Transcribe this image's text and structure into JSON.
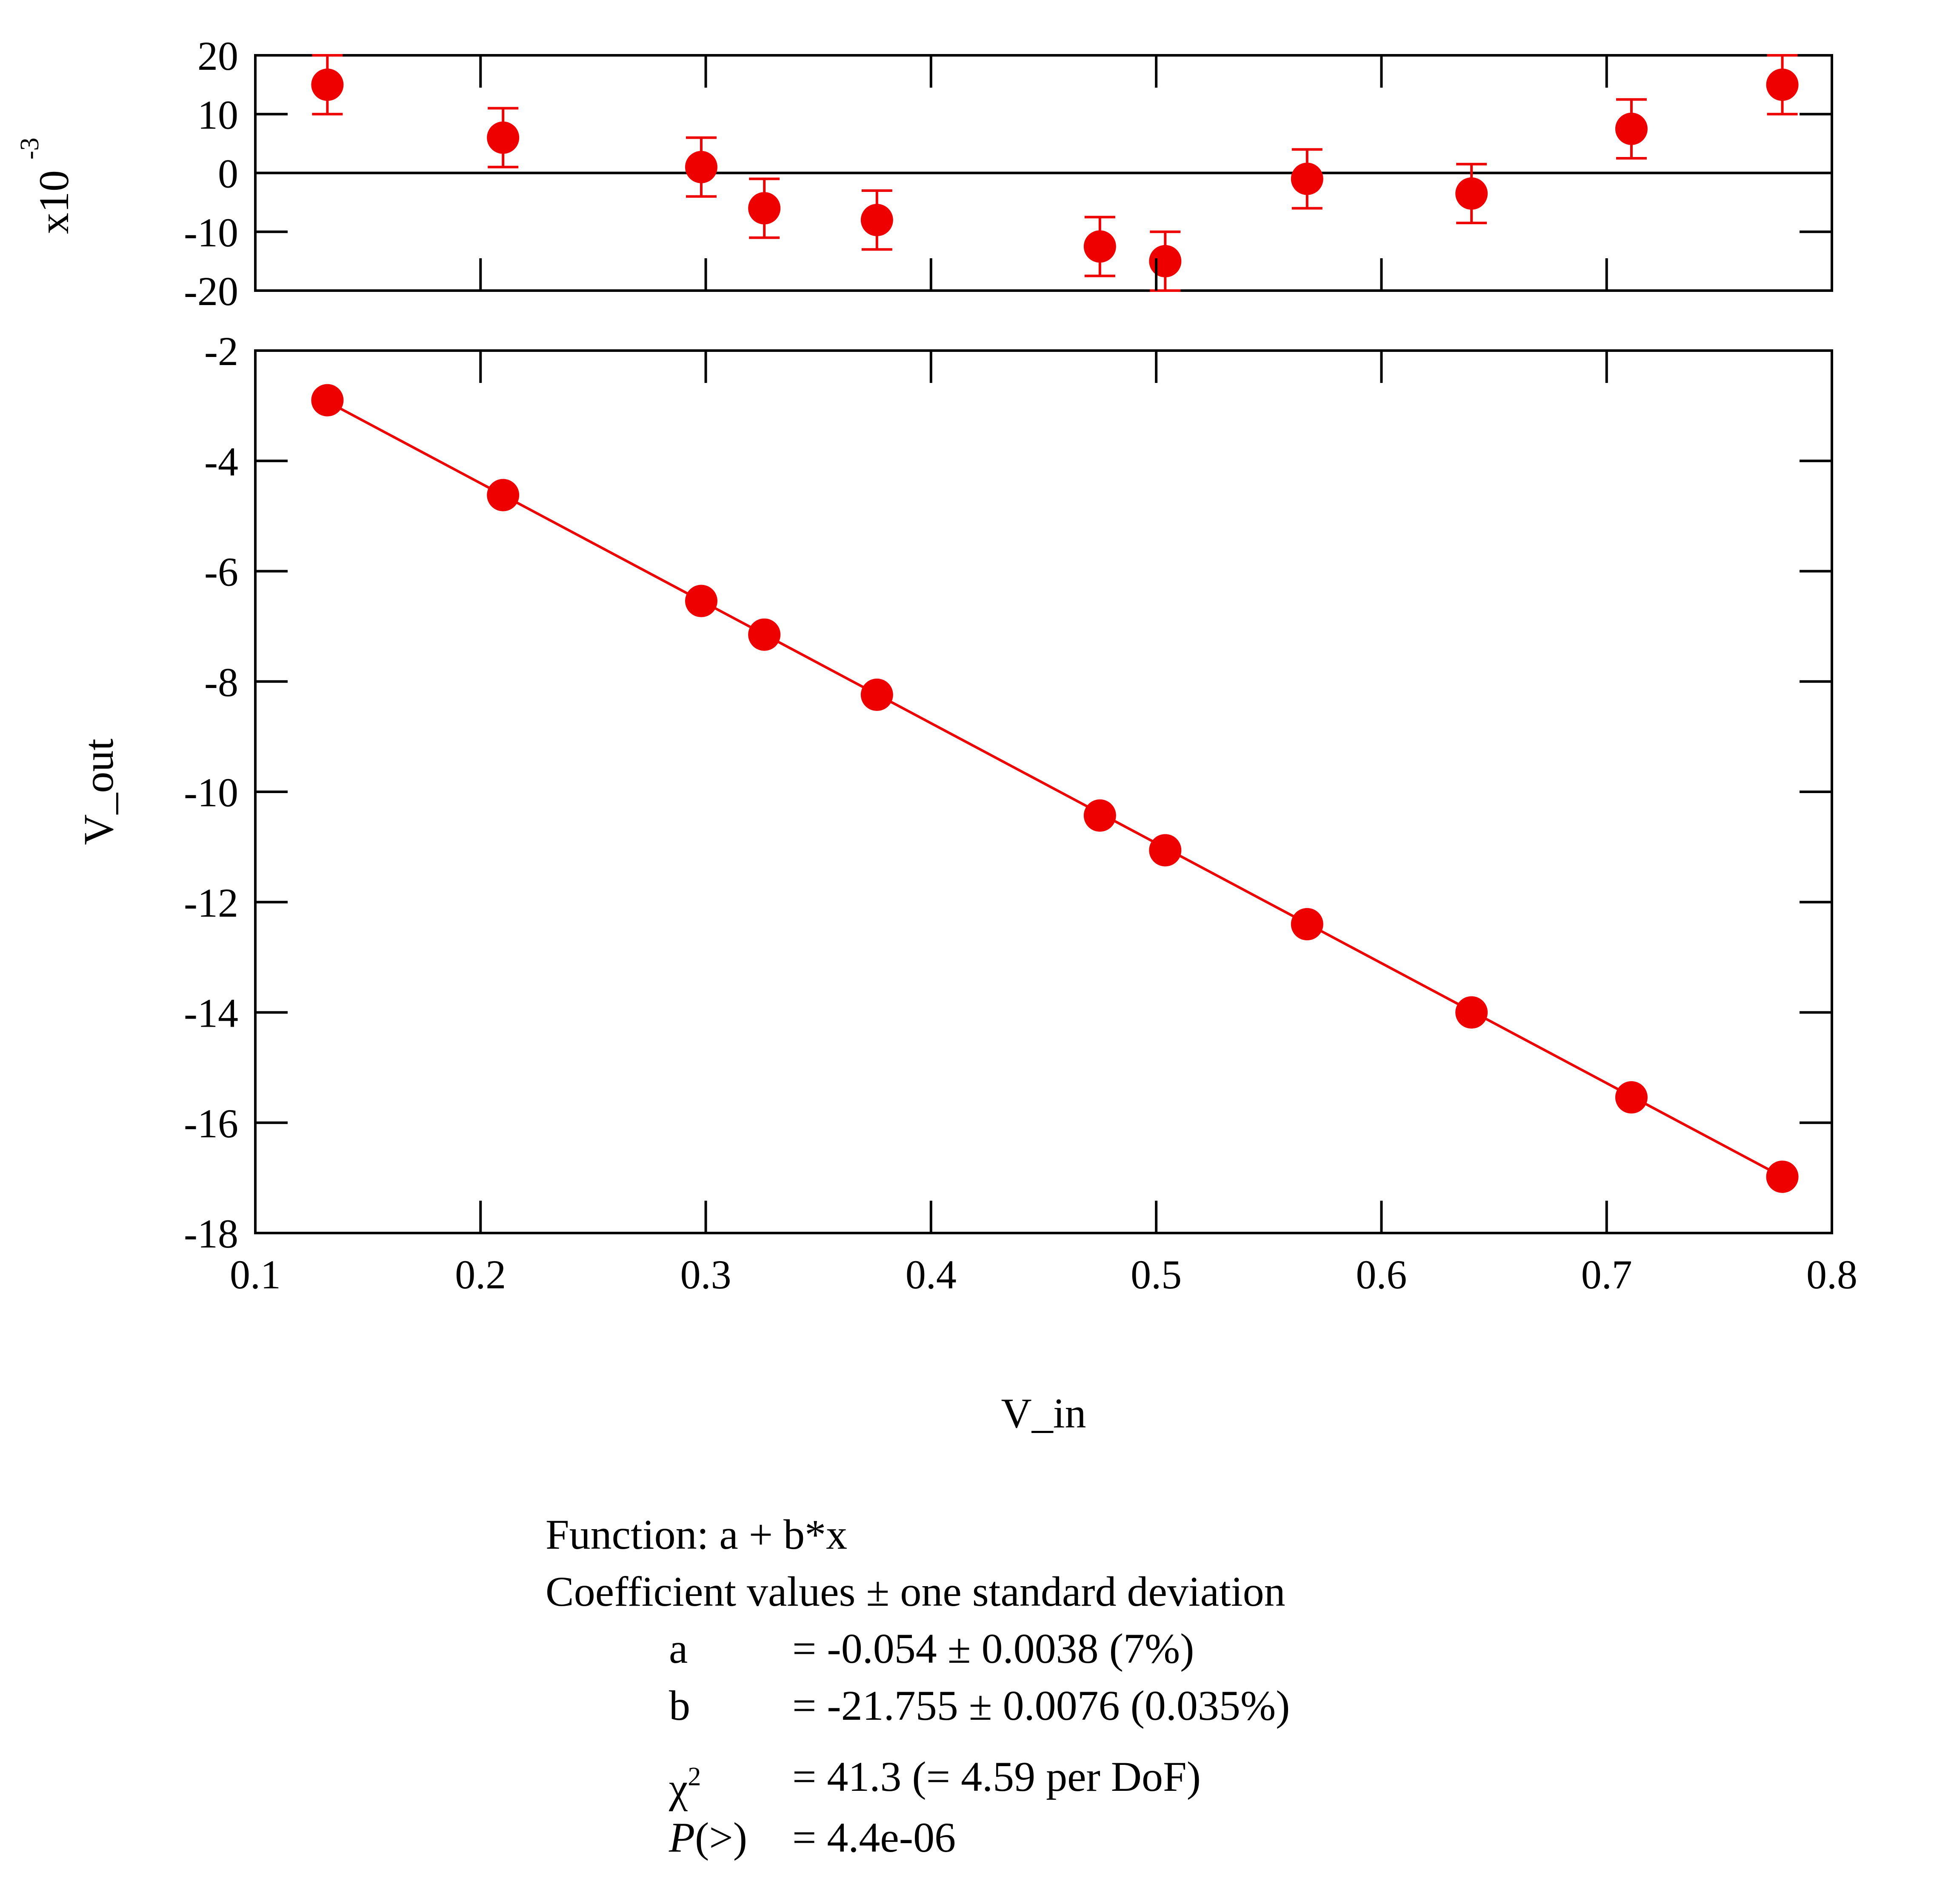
{
  "chart_data": {
    "type": "scatter",
    "x_label": "V_in",
    "y_label": "V_out",
    "residual_label": "x10",
    "residual_exponent": "-3",
    "x_range": [
      0.1,
      0.8
    ],
    "y_range": [
      -18,
      -2
    ],
    "residual_range": [
      -20,
      20
    ],
    "x_ticks": [
      "0.1",
      "0.2",
      "0.3",
      "0.4",
      "0.5",
      "0.6",
      "0.7",
      "0.8"
    ],
    "y_ticks": [
      "-2",
      "-4",
      "-6",
      "-8",
      "-10",
      "-12",
      "-14",
      "-16",
      "-18"
    ],
    "residual_ticks": [
      "20",
      "10",
      "0",
      "-10",
      "-20"
    ],
    "marker_color": "#ee0000",
    "fit": {
      "a": -0.054,
      "b": -21.755
    },
    "series": [
      {
        "x": [
          0.132,
          0.21,
          0.298,
          0.326,
          0.376,
          0.475,
          0.504,
          0.567,
          0.64,
          0.711,
          0.778
        ],
        "y": [
          -2.9,
          -4.62,
          -6.54,
          -7.15,
          -8.24,
          -10.43,
          -11.06,
          -12.4,
          -14.0,
          -15.54,
          -16.98
        ],
        "residual": [
          15,
          6,
          1,
          -6,
          -8,
          -12.5,
          -15,
          -1,
          -3.5,
          7.5,
          15
        ],
        "residual_error": [
          5,
          5,
          5,
          5,
          5,
          5,
          5,
          5,
          5,
          5,
          5
        ]
      }
    ]
  },
  "fit_info": {
    "function_line": "Function: a + b*x",
    "coeff_line": "Coefficient values ± one standard deviation",
    "params": [
      {
        "name": "a",
        "value": "= -0.054 ± 0.0038  (7%)"
      },
      {
        "name": "b",
        "value": "= -21.755 ± 0.0076  (0.035%)"
      }
    ],
    "chi_symbol": "χ",
    "chi_exponent": "2",
    "chi_value": "= 41.3 (= 4.59 per DoF)",
    "p_symbol": "P",
    "p_suffix": "(>)",
    "p_value": "= 4.4e-06"
  }
}
